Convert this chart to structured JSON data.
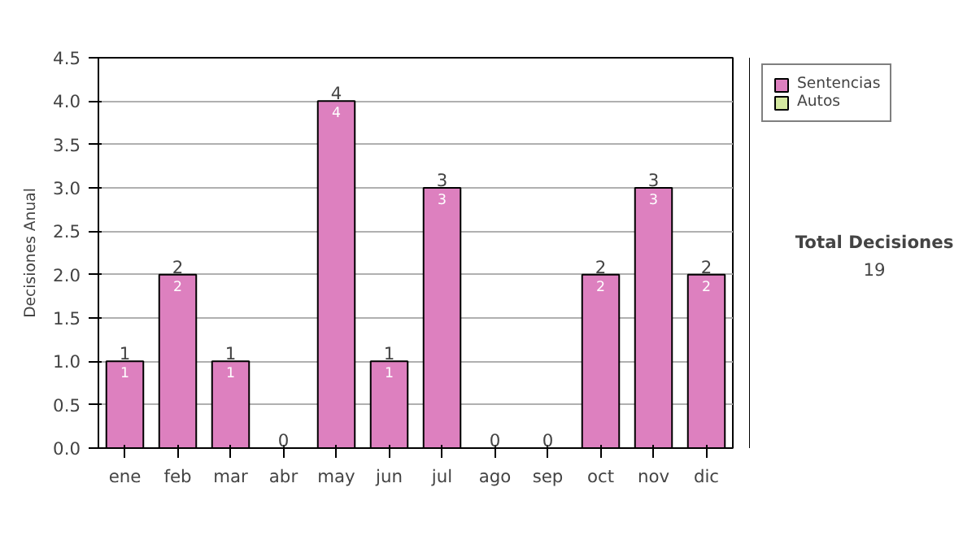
{
  "chart_data": {
    "type": "bar",
    "stacked": true,
    "ylabel": "Decisiones Anual",
    "categories": [
      "ene",
      "feb",
      "mar",
      "abr",
      "may",
      "jun",
      "jul",
      "ago",
      "sep",
      "oct",
      "nov",
      "dic"
    ],
    "series": [
      {
        "name": "Sentencias",
        "color": "#dd80bf",
        "values": [
          1,
          2,
          1,
          0,
          4,
          1,
          3,
          0,
          0,
          2,
          3,
          2
        ],
        "value_labels": [
          "1",
          "2",
          "1",
          null,
          "4",
          "1",
          "3",
          null,
          null,
          "2",
          "3",
          "2"
        ]
      },
      {
        "name": "Autos",
        "color": "#d4e8a0",
        "values": [
          0,
          0,
          0,
          0,
          0,
          0,
          0,
          0,
          0,
          0,
          0,
          0
        ]
      }
    ],
    "totals": [
      "1",
      "2",
      "1",
      "0",
      "4",
      "1",
      "3",
      "0",
      "0",
      "2",
      "3",
      "2"
    ],
    "ylim": [
      0,
      4.5
    ],
    "yticks": [
      {
        "value": 0,
        "label": "0.0"
      },
      {
        "value": 0.5,
        "label": "0.5"
      },
      {
        "value": 1,
        "label": "1.0"
      },
      {
        "value": 1.5,
        "label": "1.5"
      },
      {
        "value": 2,
        "label": "2.0"
      },
      {
        "value": 2.5,
        "label": "2.5"
      },
      {
        "value": 3,
        "label": "3.0"
      },
      {
        "value": 3.5,
        "label": "3.5"
      },
      {
        "value": 4,
        "label": "4.0"
      },
      {
        "value": 4.5,
        "label": "4.5"
      }
    ],
    "grid": "y",
    "legend": "right",
    "annotations": [
      "Total Decisiones",
      "19"
    ]
  }
}
